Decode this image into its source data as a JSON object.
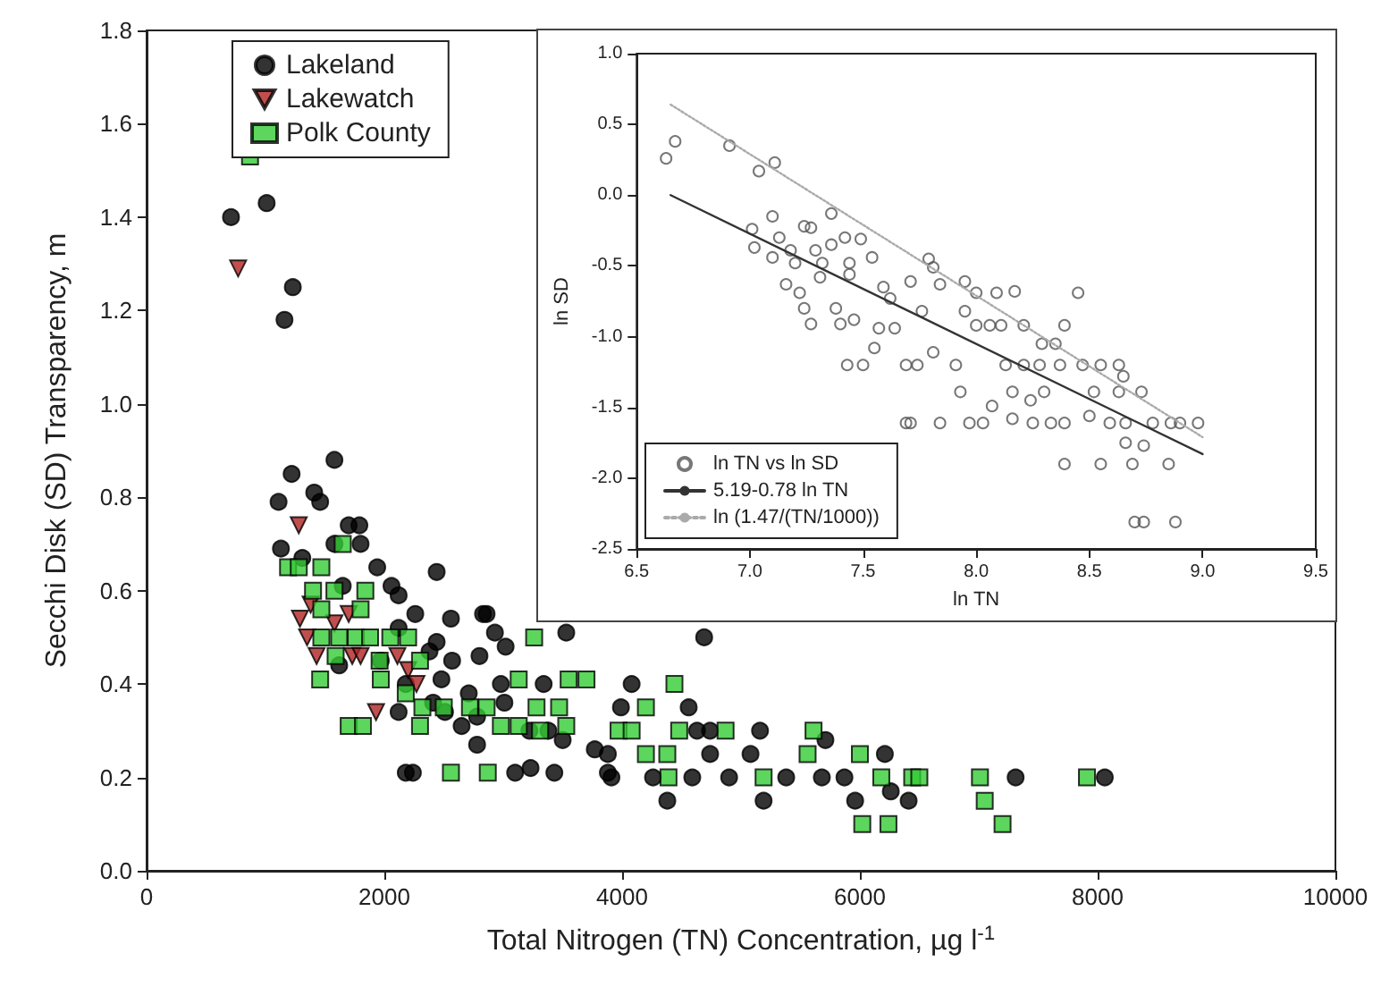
{
  "chart_data": [
    {
      "type": "scatter",
      "xlabel": "Total Nitrogen (TN) Concentration, µg l$^{-1}$",
      "ylabel": "Secchi Disk (SD) Transparency, m",
      "xlim": [
        0,
        10000
      ],
      "xticks": [
        0,
        2000,
        4000,
        6000,
        8000,
        10000
      ],
      "ylim": [
        0,
        1.8
      ],
      "yticks": [
        {
          "value": 0,
          "label": "0.0"
        },
        {
          "value": 0.2,
          "label": "0.2"
        },
        {
          "value": 0.4,
          "label": "0.4"
        },
        {
          "value": 0.6,
          "label": "0.6"
        },
        {
          "value": 0.8,
          "label": "0.8"
        },
        {
          "value": 1.0,
          "label": "1.0"
        },
        {
          "value": 1.2,
          "label": "1.2"
        },
        {
          "value": 1.4,
          "label": "1.4"
        },
        {
          "value": 1.6,
          "label": "1.6"
        },
        {
          "value": 1.8,
          "label": "1.8"
        }
      ],
      "grid": false,
      "legend": "top left",
      "series": [
        {
          "name": "Lakeland",
          "color": "#000000",
          "marker": "circle",
          "x": [
            710,
            1010,
            1230,
            1160,
            1220,
            1580,
            1110,
            1410,
            1460,
            1700,
            1790,
            1130,
            1310,
            1580,
            1800,
            1940,
            2060,
            1650,
            2120,
            2440,
            2260,
            2860,
            2560,
            2440,
            2930,
            3530,
            2120,
            1970,
            2380,
            2800,
            2570,
            1620,
            2180,
            2480,
            2410,
            2710,
            2120,
            2510,
            2780,
            3010,
            2650,
            2780,
            3220,
            3380,
            2180,
            2240,
            3100,
            3230,
            3430,
            3880,
            4690,
            2830,
            3020,
            2980,
            3340,
            4080,
            3990,
            4560,
            5160,
            4630,
            4740,
            3500,
            3770,
            3880,
            4740,
            5080,
            5710,
            3910,
            4260,
            4590,
            4900,
            5380,
            5680,
            5870,
            4380,
            5190,
            5960,
            6210,
            6260,
            6410,
            7310,
            8060
          ],
          "values": [
            1.4,
            1.43,
            1.25,
            1.18,
            0.85,
            0.88,
            0.79,
            0.81,
            0.79,
            0.74,
            0.74,
            0.69,
            0.67,
            0.7,
            0.7,
            0.65,
            0.61,
            0.61,
            0.59,
            0.64,
            0.55,
            0.55,
            0.54,
            0.49,
            0.51,
            0.51,
            0.52,
            0.45,
            0.47,
            0.46,
            0.45,
            0.44,
            0.4,
            0.41,
            0.36,
            0.38,
            0.34,
            0.34,
            0.33,
            0.36,
            0.31,
            0.27,
            0.3,
            0.3,
            0.21,
            0.21,
            0.21,
            0.22,
            0.21,
            0.21,
            0.5,
            0.55,
            0.48,
            0.4,
            0.4,
            0.4,
            0.35,
            0.35,
            0.3,
            0.3,
            0.3,
            0.28,
            0.26,
            0.25,
            0.25,
            0.25,
            0.28,
            0.2,
            0.2,
            0.2,
            0.2,
            0.2,
            0.2,
            0.2,
            0.15,
            0.15,
            0.15,
            0.25,
            0.17,
            0.15,
            0.2,
            0.2
          ]
        },
        {
          "name": "Lakewatch",
          "color": "#b22222",
          "marker": "triangle",
          "x": [
            770,
            1280,
            1380,
            1290,
            1350,
            1580,
            1700,
            1430,
            1730,
            1800,
            2110,
            2200,
            2270,
            1930
          ],
          "values": [
            1.29,
            0.74,
            0.57,
            0.54,
            0.5,
            0.53,
            0.55,
            0.46,
            0.46,
            0.46,
            0.46,
            0.43,
            0.4,
            0.34
          ]
        },
        {
          "name": "Polk County",
          "color": "#33cc33",
          "marker": "square",
          "x": [
            870,
            1190,
            1280,
            1470,
            1650,
            1400,
            1580,
            1840,
            1470,
            1800,
            1470,
            1620,
            1760,
            1880,
            2050,
            2200,
            1590,
            1960,
            2300,
            1460,
            1970,
            2180,
            2320,
            2500,
            2720,
            2860,
            3260,
            3130,
            3550,
            3700,
            3280,
            3470,
            2300,
            2980,
            3130,
            3530,
            1700,
            1820,
            2560,
            2870,
            4440,
            4200,
            3310,
            3970,
            4080,
            4480,
            4870,
            5610,
            4200,
            4380,
            5560,
            6000,
            4390,
            5190,
            6180,
            6020,
            6240,
            6440,
            6500,
            7010,
            7050,
            7200,
            7910
          ],
          "values": [
            1.53,
            0.65,
            0.65,
            0.65,
            0.7,
            0.6,
            0.6,
            0.6,
            0.56,
            0.56,
            0.5,
            0.5,
            0.5,
            0.5,
            0.5,
            0.5,
            0.46,
            0.45,
            0.45,
            0.41,
            0.41,
            0.38,
            0.35,
            0.35,
            0.35,
            0.35,
            0.5,
            0.41,
            0.41,
            0.41,
            0.35,
            0.35,
            0.31,
            0.31,
            0.31,
            0.31,
            0.31,
            0.31,
            0.21,
            0.21,
            0.4,
            0.35,
            0.3,
            0.3,
            0.3,
            0.3,
            0.3,
            0.3,
            0.25,
            0.25,
            0.25,
            0.25,
            0.2,
            0.2,
            0.2,
            0.1,
            0.1,
            0.2,
            0.2,
            0.2,
            0.15,
            0.1,
            0.2
          ]
        }
      ]
    },
    {
      "type": "scatter",
      "xlabel": "ln TN",
      "ylabel": "ln SD",
      "xlim": [
        6.5,
        9.5
      ],
      "xticks": [
        {
          "value": 6.5,
          "label": "6.5"
        },
        {
          "value": 7.0,
          "label": "7.0"
        },
        {
          "value": 7.5,
          "label": "7.5"
        },
        {
          "value": 8.0,
          "label": "8.0"
        },
        {
          "value": 8.5,
          "label": "8.5"
        },
        {
          "value": 9.0,
          "label": "9.0"
        },
        {
          "value": 9.5,
          "label": "9.5"
        }
      ],
      "ylim": [
        -2.5,
        1.0
      ],
      "yticks": [
        {
          "value": -2.5,
          "label": "-2.5"
        },
        {
          "value": -2.0,
          "label": "-2.0"
        },
        {
          "value": -1.5,
          "label": "-1.5"
        },
        {
          "value": -1.0,
          "label": "-1.0"
        },
        {
          "value": -0.5,
          "label": "-0.5"
        },
        {
          "value": 0.0,
          "label": "0.0"
        },
        {
          "value": 0.5,
          "label": "0.5"
        },
        {
          "value": 1.0,
          "label": "1.0"
        }
      ],
      "grid": false,
      "legend": "bottom left",
      "series": [
        {
          "name": "ln TN vs ln SD",
          "color": "#555555",
          "marker": "circle",
          "x": [
            6.63,
            6.67,
            6.91,
            7.04,
            7.11,
            7.36,
            7.1,
            7.01,
            7.02,
            7.1,
            7.13,
            7.18,
            7.24,
            7.27,
            7.16,
            7.22,
            7.27,
            7.4,
            7.29,
            7.36,
            7.42,
            7.49,
            7.44,
            7.54,
            7.38,
            7.46,
            7.55,
            7.43,
            7.5,
            7.62,
            7.71,
            7.57,
            7.64,
            7.69,
            7.74,
            7.69,
            7.71,
            7.79,
            7.81,
            7.76,
            7.84,
            7.81,
            7.84,
            7.95,
            7.95,
            7.93,
            7.97,
            8.03,
            7.91,
            8.0,
            8.09,
            8.17,
            8.0,
            8.06,
            8.11,
            8.21,
            8.29,
            8.13,
            8.21,
            8.28,
            8.35,
            8.39,
            8.45,
            8.16,
            8.07,
            8.16,
            8.25,
            8.33,
            8.39,
            8.24,
            8.3,
            8.37,
            8.47,
            8.55,
            8.63,
            8.52,
            8.63,
            8.65,
            8.73,
            8.5,
            8.59,
            8.66,
            8.78,
            8.86,
            8.9,
            8.98,
            8.66,
            8.74,
            8.39,
            8.55,
            8.69,
            8.85,
            8.7,
            8.74,
            8.88,
            7.2,
            7.32,
            7.44,
            7.59,
            7.31,
            7.24
          ],
          "values": [
            0.26,
            0.38,
            0.35,
            0.17,
            0.23,
            -0.13,
            -0.15,
            -0.24,
            -0.37,
            -0.44,
            -0.3,
            -0.39,
            -0.22,
            -0.23,
            -0.63,
            -0.69,
            -0.91,
            -0.91,
            -0.39,
            -0.35,
            -0.3,
            -0.31,
            -0.56,
            -0.44,
            -0.8,
            -0.88,
            -1.08,
            -1.2,
            -1.2,
            -0.73,
            -0.61,
            -0.94,
            -0.94,
            -1.2,
            -1.2,
            -1.61,
            -1.61,
            -0.45,
            -0.51,
            -0.82,
            -0.63,
            -1.11,
            -1.61,
            -0.61,
            -0.82,
            -1.39,
            -1.61,
            -1.61,
            -1.2,
            -0.69,
            -0.69,
            -0.68,
            -0.92,
            -0.92,
            -0.92,
            -0.92,
            -1.05,
            -1.2,
            -1.2,
            -1.2,
            -1.05,
            -0.92,
            -0.69,
            -1.39,
            -1.49,
            -1.58,
            -1.61,
            -1.61,
            -1.61,
            -1.45,
            -1.39,
            -1.2,
            -1.2,
            -1.2,
            -1.2,
            -1.39,
            -1.39,
            -1.28,
            -1.39,
            -1.56,
            -1.61,
            -1.61,
            -1.61,
            -1.61,
            -1.61,
            -1.61,
            -1.75,
            -1.77,
            -1.9,
            -1.9,
            -1.9,
            -1.9,
            -2.31,
            -2.31,
            -2.31,
            -0.48,
            -0.48,
            -0.48,
            -0.65,
            -0.58,
            -0.8
          ]
        },
        {
          "name": "5.19-0.78 ln TN",
          "type": "line",
          "color": "#333333",
          "marker": "none",
          "line_style": "solid",
          "x": [
            6.65,
            9.0
          ],
          "values": [
            0.0,
            -1.83
          ]
        },
        {
          "name": "ln (1.47/(TN/1000))",
          "type": "line",
          "color": "#aaaaaa",
          "marker": "none",
          "line_style": "dotted",
          "x": [
            6.65,
            9.0
          ],
          "values": [
            0.64,
            -1.71
          ]
        }
      ]
    }
  ]
}
